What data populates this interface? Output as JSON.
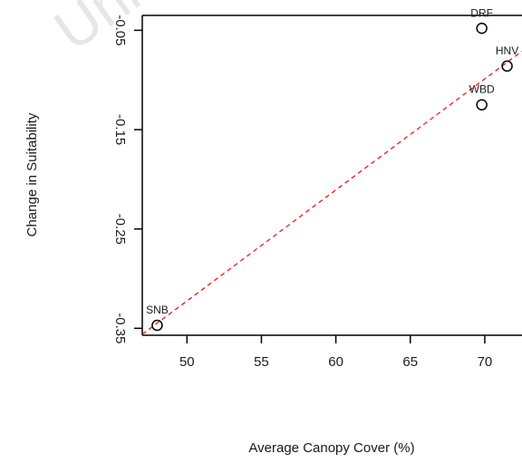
{
  "watermark": "Univ",
  "chart_data": {
    "type": "scatter",
    "title": "",
    "xlabel": "Average Canopy Cover (%)",
    "ylabel": "Change in Suitability",
    "xlim": [
      47,
      72.5
    ],
    "ylim": [
      -0.357,
      -0.035
    ],
    "xticks": [
      50,
      55,
      60,
      65,
      70
    ],
    "yticks": [
      -0.05,
      -0.15,
      -0.25,
      -0.35
    ],
    "xtick_labels": [
      "50",
      "55",
      "60",
      "65",
      "70"
    ],
    "ytick_labels": [
      "-0.05",
      "-0.15",
      "-0.25",
      "-0.35"
    ],
    "grid": false,
    "points": [
      {
        "label": "SNB",
        "x": 48.0,
        "y": -0.347
      },
      {
        "label": "WBD",
        "x": 69.8,
        "y": -0.125
      },
      {
        "label": "DRF",
        "x": 69.8,
        "y": -0.048
      },
      {
        "label": "HNV",
        "x": 71.5,
        "y": -0.086
      }
    ],
    "trendline": {
      "style": "dashed",
      "color": "#ff0000",
      "x": [
        47,
        72.5
      ],
      "y": [
        -0.356,
        -0.071
      ]
    },
    "colors": {
      "points": "#000000",
      "trendline": "#ff0000",
      "axes": "#000000"
    }
  }
}
